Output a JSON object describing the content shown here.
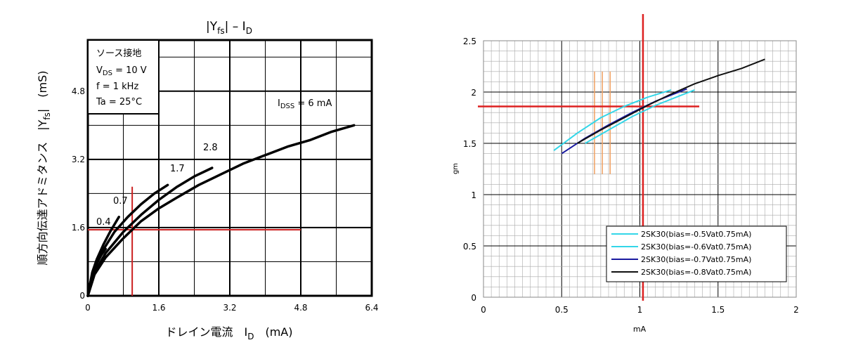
{
  "chart_data": [
    {
      "type": "line",
      "title": "|Yfs| – ID",
      "title_main": "|Y",
      "title_sub": "fs",
      "title_mid": "| – I",
      "title_sub2": "D",
      "ylabel_main": "順方向伝達アドミタンス　|Y",
      "ylabel_sub": "fs",
      "ylabel_end": "|　(mS)",
      "xlabel_main": "ドレイン電流　I",
      "xlabel_sub": "D",
      "xlabel_end": "　(mA)",
      "xlim": [
        0,
        6.4
      ],
      "ylim": [
        0,
        6.0
      ],
      "x_ticks": [
        0,
        1.6,
        3.2,
        4.8,
        6.4
      ],
      "x_tick_labels": [
        "0",
        "1.6",
        "3.2",
        "4.8",
        "6.4"
      ],
      "y_ticks": [
        0,
        1.6,
        3.2,
        4.8
      ],
      "y_tick_labels": [
        "0",
        "1.6",
        "3.2",
        "4.8"
      ],
      "grid": true,
      "conditions": [
        {
          "text": "ソース接地"
        },
        {
          "main": "V",
          "sub": "DS",
          "rest": " = 10 V"
        },
        {
          "text": "f = 1 kHz"
        },
        {
          "text": "Ta = 25°C"
        }
      ],
      "idss_label": {
        "main": "I",
        "sub": "DSS",
        "rest": " = 6 mA"
      },
      "series": [
        {
          "name": "0.4",
          "x": [
            0,
            0.1,
            0.2,
            0.3,
            0.4
          ],
          "y": [
            0,
            0.5,
            0.75,
            0.95,
            1.1
          ]
        },
        {
          "name": "0.7",
          "x": [
            0,
            0.1,
            0.2,
            0.35,
            0.5,
            0.7
          ],
          "y": [
            0,
            0.55,
            0.85,
            1.2,
            1.5,
            1.85
          ]
        },
        {
          "name": "1.7",
          "x": [
            0,
            0.1,
            0.3,
            0.6,
            0.9,
            1.2,
            1.5,
            1.8
          ],
          "y": [
            0,
            0.5,
            1.0,
            1.5,
            1.85,
            2.15,
            2.4,
            2.6
          ]
        },
        {
          "name": "2.8",
          "x": [
            0,
            0.15,
            0.4,
            0.8,
            1.2,
            1.6,
            2.0,
            2.4,
            2.8
          ],
          "y": [
            0,
            0.55,
            1.0,
            1.5,
            1.9,
            2.25,
            2.55,
            2.8,
            3.0
          ]
        },
        {
          "name": "6",
          "x": [
            0,
            0.15,
            0.4,
            0.8,
            1.2,
            1.6,
            2.0,
            2.5,
            3.0,
            3.5,
            4.0,
            4.5,
            5.0,
            5.5,
            6.0
          ],
          "y": [
            0,
            0.5,
            0.9,
            1.35,
            1.75,
            2.05,
            2.3,
            2.6,
            2.85,
            3.1,
            3.3,
            3.5,
            3.65,
            3.85,
            4.0
          ]
        }
      ],
      "markers": {
        "vertical_x": 1.0,
        "horizontal_y": 1.55,
        "horizontal_to_x": 4.8,
        "horizontal_from_x": 0,
        "marker_color": "#cc2020"
      }
    },
    {
      "type": "line",
      "xlabel": "mA",
      "ylabel": "gm",
      "xlim": [
        0,
        2
      ],
      "ylim": [
        0,
        2.5
      ],
      "x_ticks": [
        0,
        0.5,
        1,
        1.5,
        2
      ],
      "x_tick_labels": [
        "0",
        "0.5",
        "1",
        "1.5",
        "2"
      ],
      "y_ticks": [
        0,
        0.5,
        1,
        1.5,
        2,
        2.5
      ],
      "y_tick_labels": [
        "0",
        "0.5",
        "1",
        "1.5",
        "2",
        "2.5"
      ],
      "grid": true,
      "legend_position": "bottom-right",
      "series": [
        {
          "name": "2SK30(bias=-0.5Vat0.75mA)",
          "color": "#33d6e8",
          "x": [
            0.45,
            0.6,
            0.75,
            0.9,
            1.05,
            1.2
          ],
          "y": [
            1.43,
            1.6,
            1.75,
            1.86,
            1.95,
            2.02
          ]
        },
        {
          "name": "2SK30(bias=-0.6Vat0.75mA)",
          "color": "#33d6e8",
          "x": [
            0.65,
            0.8,
            0.95,
            1.1,
            1.25,
            1.35
          ],
          "y": [
            1.5,
            1.63,
            1.76,
            1.87,
            1.96,
            2.02
          ]
        },
        {
          "name": "2SK30(bias=-0.7Vat0.75mA)",
          "color": "#1a1aa0",
          "x": [
            0.5,
            0.65,
            0.8,
            0.95,
            1.1,
            1.25,
            1.3
          ],
          "y": [
            1.4,
            1.55,
            1.68,
            1.8,
            1.91,
            2.0,
            2.03
          ]
        },
        {
          "name": "2SK30(bias=-0.8Vat0.75mA)",
          "color": "#111111",
          "x": [
            0.6,
            0.75,
            0.9,
            1.05,
            1.2,
            1.35,
            1.5,
            1.65,
            1.8
          ],
          "y": [
            1.5,
            1.63,
            1.75,
            1.87,
            1.98,
            2.08,
            2.16,
            2.23,
            2.32
          ]
        }
      ],
      "markers": {
        "vertical_x": 1.02,
        "horizontal_y": 1.86,
        "horizontal_to_x": 1.38,
        "marker_color": "#dd2020",
        "orange_x": [
          0.71,
          0.76,
          0.81
        ],
        "orange_y": [
          1.2,
          2.2
        ],
        "orange_color": "#f0a060"
      }
    }
  ]
}
